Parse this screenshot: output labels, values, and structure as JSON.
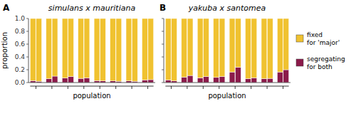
{
  "chart_data": [
    {
      "type": "bar",
      "stacked": true,
      "title": "simulans x mauritiana",
      "xlabel": "population",
      "ylabel": "proportion",
      "annotations": [
        "A"
      ],
      "categories": [
        null,
        null,
        null,
        null,
        null,
        null,
        null,
        null,
        null,
        null,
        null,
        null,
        null,
        null,
        null,
        null
      ],
      "series": [
        {
          "color": "#8B1A4A",
          "values": [
            0.03,
            0.02,
            0.06,
            0.1,
            0.07,
            0.095,
            0.065,
            0.075,
            0.03,
            0.025,
            0.025,
            0.02,
            0.025,
            0.02,
            0.04,
            0.045
          ]
        },
        {
          "color": "#F0C230",
          "values": [
            0.97,
            0.98,
            0.94,
            0.9,
            0.93,
            0.905,
            0.935,
            0.925,
            0.97,
            0.975,
            0.975,
            0.98,
            0.975,
            0.98,
            0.96,
            0.955
          ]
        }
      ],
      "ylim": [
        0.0,
        1.0
      ],
      "yticks": [
        {
          "value": 0.0,
          "label": "0.0"
        },
        0.2,
        0.4,
        0.6,
        0.8,
        {
          "value": 1.0,
          "label": "1.0"
        }
      ],
      "tick_labels": "y",
      "grid": false
    },
    {
      "type": "bar",
      "stacked": true,
      "title": "yakuba x santomea",
      "xlabel": "population",
      "annotations": [
        "B"
      ],
      "categories": [
        null,
        null,
        null,
        null,
        null,
        null,
        null,
        null,
        null,
        null,
        null,
        null,
        null,
        null,
        null,
        null
      ],
      "series": [
        {
          "name": "segregating\nfor both",
          "color": "#8B1A4A",
          "values": [
            0.04,
            0.025,
            0.085,
            0.11,
            0.075,
            0.095,
            0.08,
            0.095,
            0.165,
            0.24,
            0.06,
            0.075,
            0.06,
            0.065,
            0.165,
            0.2
          ]
        },
        {
          "name": "fixed\nfor 'major'",
          "color": "#F0C230",
          "values": [
            0.96,
            0.975,
            0.915,
            0.89,
            0.925,
            0.905,
            0.92,
            0.905,
            0.835,
            0.76,
            0.94,
            0.925,
            0.94,
            0.935,
            0.835,
            0.8
          ]
        }
      ],
      "ylim": [
        0.0,
        1.0
      ],
      "yticks": [
        0.0,
        0.2,
        0.4,
        0.6,
        0.8,
        1.0
      ],
      "tick_labels": false,
      "grid": false,
      "legend": "right"
    }
  ]
}
